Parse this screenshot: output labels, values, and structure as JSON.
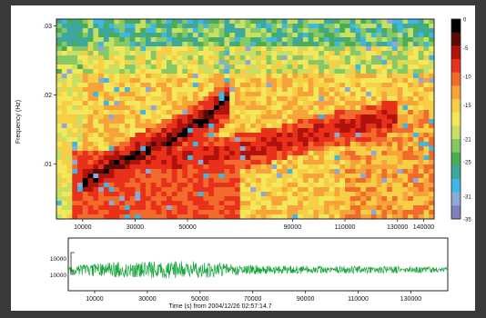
{
  "header": {
    "text": ""
  },
  "colors": {
    "colormap": [
      "#000000",
      "#5a0b06",
      "#b0120c",
      "#e8301b",
      "#f26b2c",
      "#f7a33a",
      "#f7cf46",
      "#f4e85a",
      "#c7df63",
      "#86c766",
      "#49ad55",
      "#3ea8a0",
      "#3fb7e3",
      "#8fa9d6",
      "#7f7fbf"
    ]
  },
  "chart_data": [
    {
      "type": "heatmap",
      "title": "",
      "ylabel": "Frequency (Hz)",
      "xlabel": "",
      "x_ticks": [
        "10000",
        "30000",
        "50000",
        "90000",
        "110000",
        "130000",
        "140000"
      ],
      "x_tick_values": [
        10000,
        30000,
        50000,
        90000,
        110000,
        130000,
        140000
      ],
      "xlim": [
        0,
        144000
      ],
      "y_ticks": [
        ".03",
        ".02",
        ".01"
      ],
      "y_tick_values": [
        0.03,
        0.02,
        0.01
      ],
      "ylim": [
        0.002,
        0.031
      ],
      "colorbar": {
        "ticks": [
          "0",
          "-5",
          "-10",
          "-15",
          "-21",
          "-25",
          "-31",
          "-35"
        ],
        "values": [
          0,
          -5,
          -10,
          -15,
          -21,
          -25,
          -31,
          -35
        ]
      },
      "features": {
        "strong_ridge": {
          "x": [
            10000,
            20000,
            30000,
            40000,
            50000,
            60000,
            65000
          ],
          "y": [
            0.0075,
            0.0093,
            0.011,
            0.013,
            0.015,
            0.0175,
            0.019
          ]
        },
        "weak_ridge": {
          "x": [
            40000,
            60000,
            80000,
            100000,
            120000,
            130000
          ],
          "y": [
            0.0105,
            0.0112,
            0.0125,
            0.0145,
            0.016,
            0.017
          ]
        }
      }
    },
    {
      "type": "line",
      "title": "",
      "ylabel": "",
      "xlabel": "Time (s) from 2004/12/26 02:57:14.7",
      "x_ticks": [
        "10000",
        "30000",
        "50000",
        "70000",
        "90000",
        "110000",
        "130000"
      ],
      "x_tick_values": [
        10000,
        30000,
        50000,
        70000,
        90000,
        110000,
        130000
      ],
      "xlim": [
        0,
        144000
      ],
      "y_ticks": [
        "10000",
        "10000"
      ],
      "series": [
        {
          "envelope_x": [
            0,
            5000,
            15000,
            30000,
            45000,
            55000,
            65000,
            80000,
            100000,
            120000,
            144000
          ],
          "envelope_amp": [
            0.25,
            0.45,
            0.6,
            0.65,
            0.7,
            0.6,
            0.4,
            0.35,
            0.3,
            0.28,
            0.22
          ]
        }
      ]
    }
  ]
}
